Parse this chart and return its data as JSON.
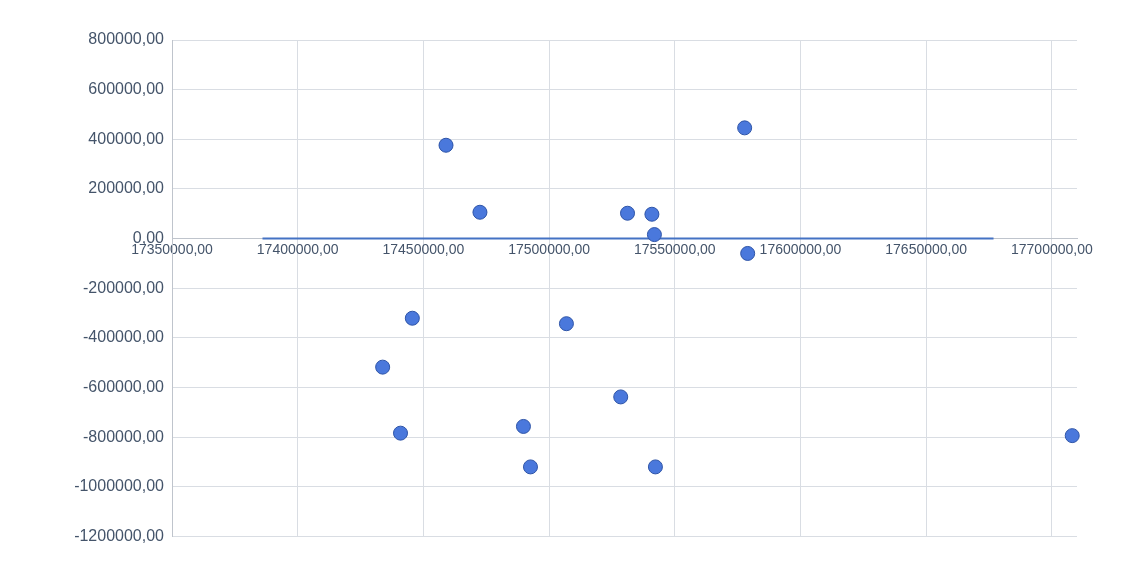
{
  "chart_data": {
    "type": "scatter",
    "series": [
      {
        "type": "scatter",
        "marker": "circle",
        "color": "#4a78dc",
        "x": [
          17459000,
          17472500,
          17577800,
          17531200,
          17540900,
          17541900,
          17579000,
          17445600,
          17433800,
          17440900,
          17489800,
          17492600,
          17506900,
          17528500,
          17542300,
          17708100
        ],
        "values": [
          376000,
          106000,
          446000,
          102000,
          98000,
          16000,
          -60000,
          -321000,
          -518000,
          -784000,
          -757000,
          -920000,
          -343000,
          -638000,
          -920000,
          -794000
        ]
      },
      {
        "type": "line",
        "color": "#4472c4",
        "x": [
          17386000,
          17676800
        ],
        "values": [
          0,
          0
        ]
      }
    ],
    "xlim": [
      17350000,
      17710000
    ],
    "xticks": [
      {
        "value": 17350000,
        "label": "17350000,00"
      },
      {
        "value": 17400000,
        "label": "17400000,00"
      },
      {
        "value": 17450000,
        "label": "17450000,00"
      },
      {
        "value": 17500000,
        "label": "17500000,00"
      },
      {
        "value": 17550000,
        "label": "17550000,00"
      },
      {
        "value": 17600000,
        "label": "17600000,00"
      },
      {
        "value": 17650000,
        "label": "17650000,00"
      },
      {
        "value": 17700000,
        "label": "17700000,00"
      }
    ],
    "ylim": [
      -1200000,
      800000
    ],
    "yticks": [
      {
        "value": 800000,
        "label": "800000,00"
      },
      {
        "value": 600000,
        "label": "600000,00"
      },
      {
        "value": 400000,
        "label": "400000,00"
      },
      {
        "value": 200000,
        "label": "200000,00"
      },
      {
        "value": 0,
        "label": "0,00"
      },
      {
        "value": -200000,
        "label": "-200000,00"
      },
      {
        "value": -400000,
        "label": "-400000,00"
      },
      {
        "value": -600000,
        "label": "-600000,00"
      },
      {
        "value": -800000,
        "label": "-800000,00"
      },
      {
        "value": -1000000,
        "label": "-1000000,00"
      },
      {
        "value": -1200000,
        "label": "-1200000,00"
      }
    ],
    "grid": true
  }
}
